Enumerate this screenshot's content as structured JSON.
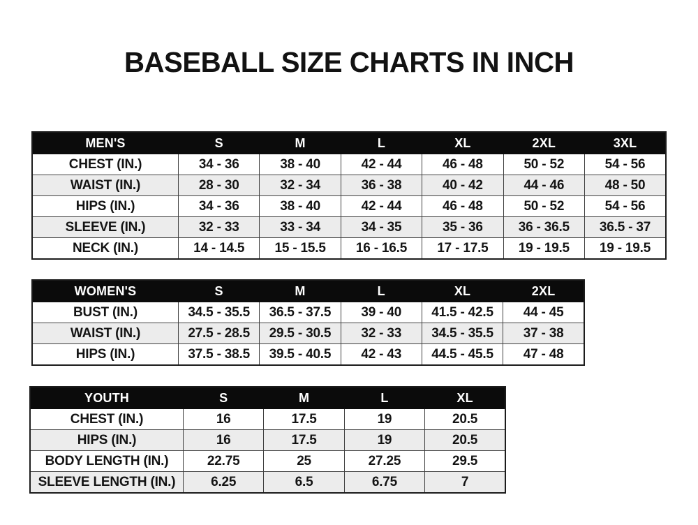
{
  "page": {
    "title": "BASEBALL SIZE CHARTS IN INCH"
  },
  "colors": {
    "background": "#ffffff",
    "header_bg": "#0b0b0b",
    "header_text": "#ffffff",
    "row_alt": "#ececec",
    "grid_border": "#404040",
    "text": "#141414"
  },
  "chart_data": [
    {
      "type": "table",
      "title": "MEN'S",
      "columns": [
        "MEN'S",
        "S",
        "M",
        "L",
        "XL",
        "2XL",
        "3XL"
      ],
      "rows": [
        [
          "CHEST (IN.)",
          "34 - 36",
          "38 - 40",
          "42 - 44",
          "46 - 48",
          "50 - 52",
          "54 - 56"
        ],
        [
          "WAIST (IN.)",
          "28 - 30",
          "32 - 34",
          "36 - 38",
          "40 - 42",
          "44 - 46",
          "48 - 50"
        ],
        [
          "HIPS (IN.)",
          "34 - 36",
          "38 - 40",
          "42 - 44",
          "46 - 48",
          "50 - 52",
          "54 - 56"
        ],
        [
          "SLEEVE (IN.)",
          "32 - 33",
          "33 - 34",
          "34 - 35",
          "35 - 36",
          "36 - 36.5",
          "36.5 - 37"
        ],
        [
          "NECK (IN.)",
          "14 - 14.5",
          "15 - 15.5",
          "16 - 16.5",
          "17 - 17.5",
          "19 - 19.5",
          "19 - 19.5"
        ]
      ]
    },
    {
      "type": "table",
      "title": "WOMEN'S",
      "columns": [
        "WOMEN'S",
        "S",
        "M",
        "L",
        "XL",
        "2XL"
      ],
      "rows": [
        [
          "BUST (IN.)",
          "34.5 - 35.5",
          "36.5 - 37.5",
          "39 - 40",
          "41.5 - 42.5",
          "44 - 45"
        ],
        [
          "WAIST (IN.)",
          "27.5 - 28.5",
          "29.5 - 30.5",
          "32 - 33",
          "34.5 - 35.5",
          "37 - 38"
        ],
        [
          "HIPS (IN.)",
          "37.5 - 38.5",
          "39.5 - 40.5",
          "42 - 43",
          "44.5 - 45.5",
          "47 - 48"
        ]
      ]
    },
    {
      "type": "table",
      "title": "YOUTH",
      "columns": [
        "YOUTH",
        "S",
        "M",
        "L",
        "XL"
      ],
      "rows": [
        [
          "CHEST (IN.)",
          "16",
          "17.5",
          "19",
          "20.5"
        ],
        [
          "HIPS (IN.)",
          "16",
          "17.5",
          "19",
          "20.5"
        ],
        [
          "BODY LENGTH (IN.)",
          "22.75",
          "25",
          "27.25",
          "29.5"
        ],
        [
          "SLEEVE LENGTH (IN.)",
          "6.25",
          "6.5",
          "6.75",
          "7"
        ]
      ]
    }
  ]
}
